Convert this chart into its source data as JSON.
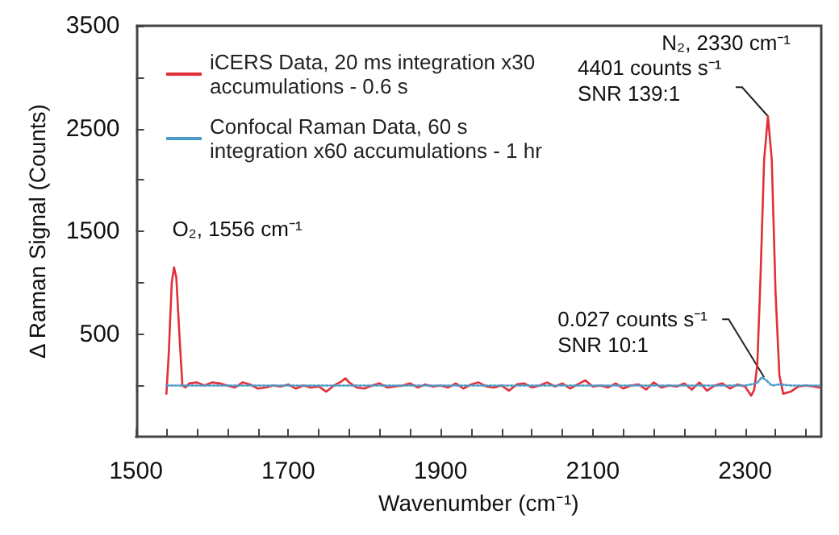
{
  "chart_data": {
    "type": "line",
    "xlabel": "Wavenumber (cm⁻¹)",
    "ylabel": "Δ Raman Signal (Counts)",
    "xlim": [
      1500,
      2400
    ],
    "xticks": [
      1500,
      {
        "value": 1540,
        "label": null
      },
      {
        "value": 1580,
        "label": null
      },
      {
        "value": 1620,
        "label": null
      },
      {
        "value": 1660,
        "label": null
      },
      1700,
      {
        "value": 1740,
        "label": null
      },
      {
        "value": 1780,
        "label": null
      },
      {
        "value": 1820,
        "label": null
      },
      {
        "value": 1860,
        "label": null
      },
      1900,
      {
        "value": 1940,
        "label": null
      },
      {
        "value": 1980,
        "label": null
      },
      {
        "value": 2020,
        "label": null
      },
      {
        "value": 2060,
        "label": null
      },
      2100,
      {
        "value": 2140,
        "label": null
      },
      {
        "value": 2180,
        "label": null
      },
      {
        "value": 2220,
        "label": null
      },
      {
        "value": 2260,
        "label": null
      },
      2300,
      {
        "value": 2340,
        "label": null
      },
      {
        "value": 2380,
        "label": null
      }
    ],
    "ylim": [
      -500,
      3500
    ],
    "yticks": [
      {
        "value": 0,
        "label": null
      },
      500,
      {
        "value": 1000,
        "label": null
      },
      1500,
      {
        "value": 2000,
        "label": null
      },
      2500,
      {
        "value": 3000,
        "label": null
      },
      3500
    ],
    "grid": false,
    "legend": "top left",
    "marker": "none",
    "series": [
      {
        "name": "iCERS Data, 20 ms integration x30\naccumulations - 0.6 s",
        "color": "#e0303a",
        "line_style": "solid",
        "x": [
          1540,
          1543,
          1547,
          1550,
          1553,
          1557,
          1561,
          1565,
          1570,
          1580,
          1590,
          1600,
          1610,
          1620,
          1630,
          1640,
          1650,
          1660,
          1670,
          1680,
          1690,
          1700,
          1710,
          1720,
          1730,
          1740,
          1750,
          1760,
          1770,
          1775,
          1780,
          1790,
          1800,
          1810,
          1820,
          1830,
          1840,
          1850,
          1860,
          1870,
          1880,
          1890,
          1900,
          1910,
          1920,
          1930,
          1940,
          1950,
          1960,
          1970,
          1980,
          1990,
          2000,
          2010,
          2020,
          2030,
          2040,
          2050,
          2060,
          2070,
          2080,
          2090,
          2100,
          2110,
          2120,
          2130,
          2140,
          2150,
          2160,
          2170,
          2180,
          2190,
          2200,
          2210,
          2220,
          2230,
          2240,
          2250,
          2260,
          2270,
          2280,
          2290,
          2300,
          2308,
          2312,
          2316,
          2320,
          2325,
          2330,
          2335,
          2340,
          2345,
          2350,
          2360,
          2370,
          2380,
          2390,
          2398
        ],
        "values": [
          -80,
          300,
          1000,
          1150,
          1050,
          500,
          0,
          -20,
          20,
          30,
          0,
          30,
          20,
          0,
          -20,
          30,
          10,
          -30,
          -20,
          0,
          -10,
          10,
          -30,
          0,
          -20,
          -10,
          -60,
          0,
          40,
          70,
          30,
          -20,
          -30,
          0,
          20,
          -20,
          -10,
          0,
          20,
          -20,
          10,
          -10,
          0,
          -20,
          20,
          -30,
          10,
          30,
          -10,
          -20,
          0,
          -50,
          10,
          20,
          -20,
          0,
          30,
          -10,
          20,
          -30,
          10,
          50,
          -10,
          0,
          -20,
          20,
          -30,
          0,
          10,
          -40,
          30,
          -20,
          0,
          -10,
          20,
          -40,
          30,
          -50,
          0,
          20,
          -30,
          10,
          -10,
          -100,
          -40,
          200,
          1000,
          2200,
          2620,
          2200,
          900,
          100,
          -80,
          -60,
          -10,
          0,
          -10,
          -20
        ]
      },
      {
        "name": "Confocal Raman Data, 60 s\nintegration x60 accumulations - 1 hr",
        "color": "#4a9ac8",
        "line_style": "dotted",
        "x": [
          1540,
          1700,
          1900,
          2100,
          2300,
          2315,
          2322,
          2328,
          2335,
          2345,
          2360,
          2398
        ],
        "values": [
          0,
          0,
          0,
          0,
          0,
          20,
          80,
          50,
          0,
          10,
          0,
          0
        ]
      }
    ],
    "annotations": [
      {
        "text": "O₂, 1556 cm⁻¹",
        "x": 1556,
        "y": 1150
      },
      "N₂, 2330 cm⁻¹",
      {
        "text": "4401 counts s⁻¹\nSNR 139:1",
        "x": 2330,
        "y": 2620
      },
      {
        "text": "0.027 counts s⁻¹\nSNR 10:1",
        "x": 2325,
        "y": 80
      }
    ]
  }
}
